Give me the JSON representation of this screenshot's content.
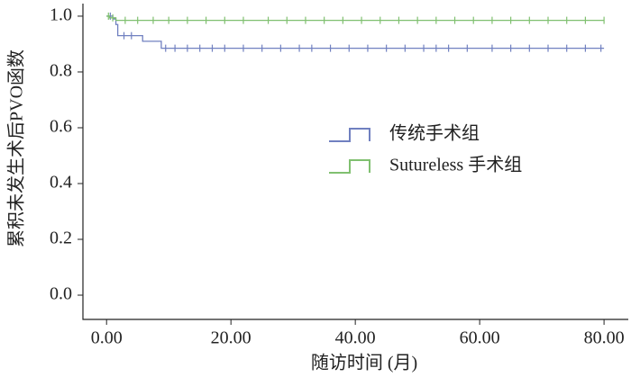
{
  "chart_data": {
    "type": "km",
    "xlabel": "随访时间 (月)",
    "ylabel": "累积未发生术后PVO函数",
    "xlim": [
      -3.8,
      83.9
    ],
    "ylim": [
      -0.087,
      1.045
    ],
    "xticks": [
      {
        "value": 0,
        "label": "0.00"
      },
      {
        "value": 20,
        "label": "20.00"
      },
      {
        "value": 40,
        "label": "40.00"
      },
      {
        "value": 60,
        "label": "60.00"
      },
      {
        "value": 80,
        "label": "80.00"
      }
    ],
    "yticks": [
      {
        "value": 0,
        "label": "0.0"
      },
      0.2,
      0.4,
      0.6,
      0.8,
      {
        "value": 1,
        "label": "1.0"
      }
    ],
    "series": [
      {
        "name": "传统手术组",
        "color": "#7080c0",
        "x": [
          0,
          1,
          1.5,
          1.8,
          5.8,
          8.8,
          80
        ],
        "values": [
          1,
          0.99,
          0.97,
          0.93,
          0.91,
          0.885,
          0.885
        ],
        "censored": [
          0.6,
          2.8,
          4,
          9.5,
          11,
          13,
          15,
          17,
          19,
          22,
          25,
          28,
          31,
          33,
          36,
          39,
          42,
          45,
          48,
          51,
          53,
          55,
          58,
          62,
          65,
          68,
          71,
          74,
          77,
          79.5
        ]
      },
      {
        "name": "Sutureless 手术组",
        "color": "#80c070",
        "x": [
          0,
          0.5,
          1.5,
          80
        ],
        "values": [
          1,
          0.994,
          0.985,
          0.985
        ],
        "censored": [
          0.3,
          1,
          3,
          5,
          7.5,
          10,
          13,
          16,
          19,
          22,
          26,
          29,
          32,
          35,
          38,
          41,
          44,
          47,
          50,
          53,
          56,
          59,
          62,
          65,
          68,
          71,
          74,
          77,
          80
        ]
      }
    ]
  }
}
